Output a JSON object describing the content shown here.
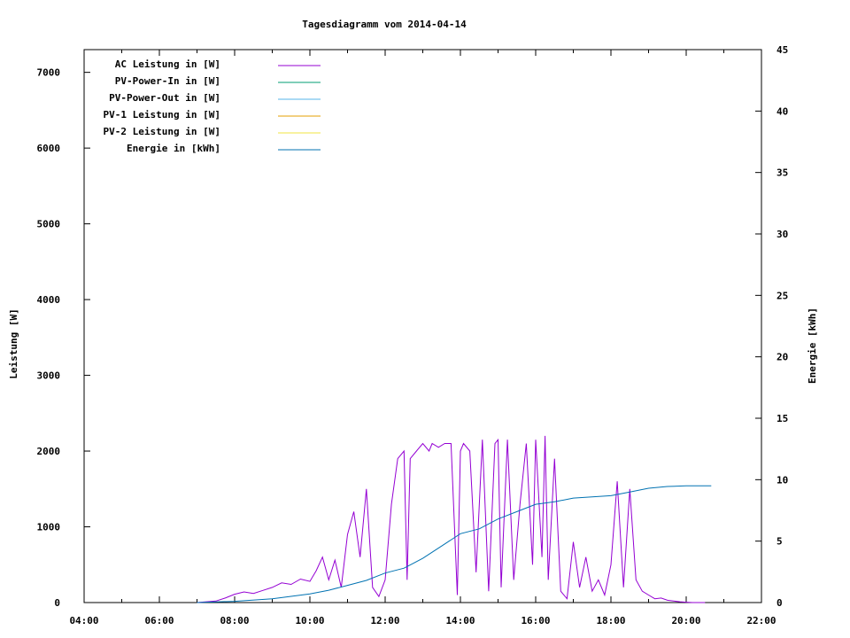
{
  "chart_data": {
    "type": "line",
    "title": "Tagesdiagramm vom 2014-04-14",
    "ylabel": "Leistung [W]",
    "y2label": "Energie [kWh]",
    "xlim": [
      "04:00",
      "22:00"
    ],
    "ylim": [
      0,
      7300
    ],
    "y2lim": [
      0,
      45
    ],
    "x_ticks": [
      "04:00",
      "06:00",
      "08:00",
      "10:00",
      "12:00",
      "14:00",
      "16:00",
      "18:00",
      "20:00",
      "22:00"
    ],
    "y_ticks": [
      "0",
      "1000",
      "2000",
      "3000",
      "4000",
      "5000",
      "6000",
      "7000"
    ],
    "y2_ticks": [
      "0",
      "5",
      "10",
      "15",
      "20",
      "25",
      "30",
      "35",
      "40",
      "45"
    ],
    "grid": false,
    "legend_position": "top-left",
    "colors": {
      "ac": "#9400d3",
      "pv_in": "#009e73",
      "pv_out": "#56b4e9",
      "pv1": "#e69f00",
      "pv2": "#f0e442",
      "energie": "#0072b2"
    },
    "series": [
      {
        "name": "AC Leistung in [W]",
        "color_key": "ac",
        "axis": "y1",
        "x": [
          "07:00",
          "07:30",
          "07:45",
          "08:00",
          "08:15",
          "08:30",
          "08:45",
          "09:00",
          "09:15",
          "09:30",
          "09:45",
          "10:00",
          "10:10",
          "10:20",
          "10:30",
          "10:40",
          "10:50",
          "11:00",
          "11:10",
          "11:20",
          "11:30",
          "11:40",
          "11:50",
          "12:00",
          "12:10",
          "12:20",
          "12:30",
          "12:35",
          "12:40",
          "12:50",
          "13:00",
          "13:10",
          "13:15",
          "13:25",
          "13:35",
          "13:45",
          "13:55",
          "14:00",
          "14:05",
          "14:15",
          "14:25",
          "14:35",
          "14:45",
          "14:55",
          "15:00",
          "15:05",
          "15:15",
          "15:25",
          "15:35",
          "15:45",
          "15:55",
          "16:00",
          "16:10",
          "16:15",
          "16:20",
          "16:30",
          "16:40",
          "16:50",
          "17:00",
          "17:10",
          "17:20",
          "17:30",
          "17:40",
          "17:50",
          "18:00",
          "18:10",
          "18:20",
          "18:30",
          "18:35",
          "18:40",
          "18:50",
          "19:00",
          "19:10",
          "19:20",
          "19:30",
          "19:40",
          "19:50",
          "20:00",
          "20:10",
          "20:30"
        ],
        "values": [
          0,
          20,
          60,
          110,
          140,
          120,
          160,
          200,
          260,
          240,
          310,
          280,
          420,
          600,
          300,
          560,
          200,
          900,
          1200,
          600,
          1500,
          200,
          80,
          300,
          1300,
          1900,
          2000,
          300,
          1900,
          2000,
          2100,
          2000,
          2100,
          2050,
          2100,
          2100,
          100,
          2000,
          2100,
          2000,
          400,
          2150,
          150,
          2100,
          2150,
          200,
          2150,
          300,
          1300,
          2100,
          500,
          2150,
          600,
          2200,
          300,
          1900,
          150,
          50,
          800,
          200,
          600,
          150,
          300,
          100,
          500,
          1600,
          200,
          1500,
          900,
          300,
          150,
          100,
          50,
          60,
          30,
          20,
          10,
          5,
          0,
          0
        ]
      },
      {
        "name": "PV-Power-In in [W]",
        "color_key": "pv_in",
        "axis": "y1",
        "x": [],
        "values": []
      },
      {
        "name": "PV-Power-Out in [W]",
        "color_key": "pv_out",
        "axis": "y1",
        "x": [],
        "values": []
      },
      {
        "name": "PV-1 Leistung in [W]",
        "color_key": "pv1",
        "axis": "y1",
        "x": [],
        "values": []
      },
      {
        "name": "PV-2 Leistung in [W]",
        "color_key": "pv2",
        "axis": "y1",
        "x": [],
        "values": []
      },
      {
        "name": "Energie in [kWh]",
        "color_key": "energie",
        "axis": "y2",
        "x": [
          "07:00",
          "08:00",
          "09:00",
          "10:00",
          "10:30",
          "11:00",
          "11:30",
          "12:00",
          "12:30",
          "13:00",
          "13:30",
          "14:00",
          "14:30",
          "15:00",
          "15:30",
          "16:00",
          "16:30",
          "17:00",
          "17:30",
          "18:00",
          "18:30",
          "19:00",
          "19:30",
          "20:00",
          "20:40"
        ],
        "values": [
          0,
          0.1,
          0.3,
          0.7,
          1.0,
          1.4,
          1.8,
          2.4,
          2.8,
          3.6,
          4.6,
          5.6,
          6.0,
          6.8,
          7.4,
          8.0,
          8.2,
          8.5,
          8.6,
          8.7,
          9.0,
          9.3,
          9.45,
          9.5,
          9.5
        ]
      }
    ]
  }
}
